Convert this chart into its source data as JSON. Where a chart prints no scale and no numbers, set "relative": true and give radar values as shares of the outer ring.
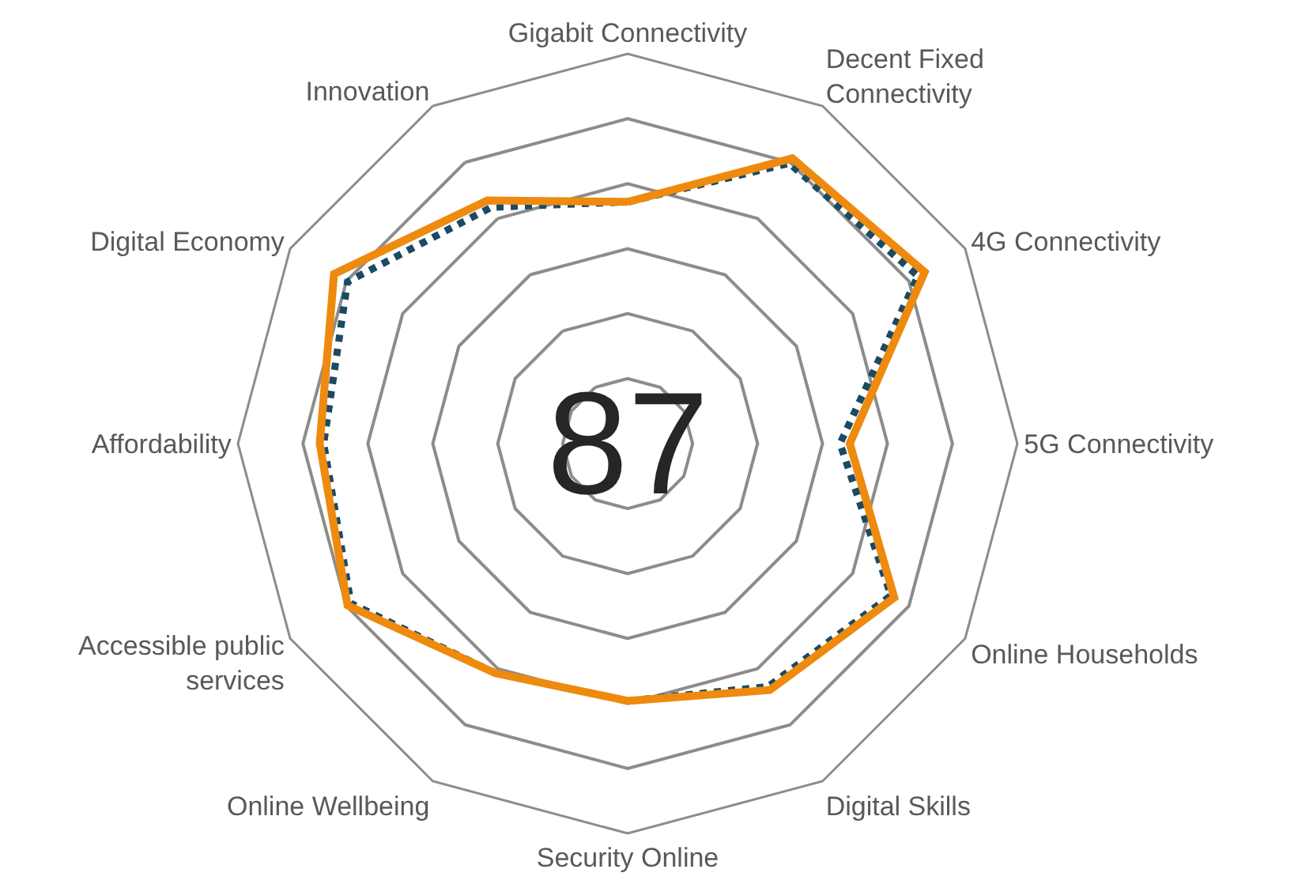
{
  "chart_data": {
    "type": "radar",
    "relative": true,
    "grid": true,
    "marker": "none",
    "categories": [
      "Gigabit Connectivity",
      "Decent Fixed Connectivity",
      "4G Connectivity",
      "5G Connectivity",
      "Online Households",
      "Digital Skills",
      "Security Online",
      "Online Wellbeing",
      "Accessible public services",
      "Affordability",
      "Digital Economy",
      "Innovation"
    ],
    "series": [
      {
        "color": "#1b4a63",
        "line_style": "dotted",
        "values": [
          0.62,
          0.83,
          0.86,
          0.545,
          0.78,
          0.72,
          0.66,
          0.68,
          0.82,
          0.78,
          0.83,
          0.7
        ]
      },
      {
        "color": "#ee8a0e",
        "line_style": "solid",
        "values": [
          0.62,
          0.845,
          0.88,
          0.57,
          0.79,
          0.73,
          0.66,
          0.68,
          0.83,
          0.79,
          0.87,
          0.72
        ]
      }
    ],
    "annotations": [
      "87"
    ]
  }
}
